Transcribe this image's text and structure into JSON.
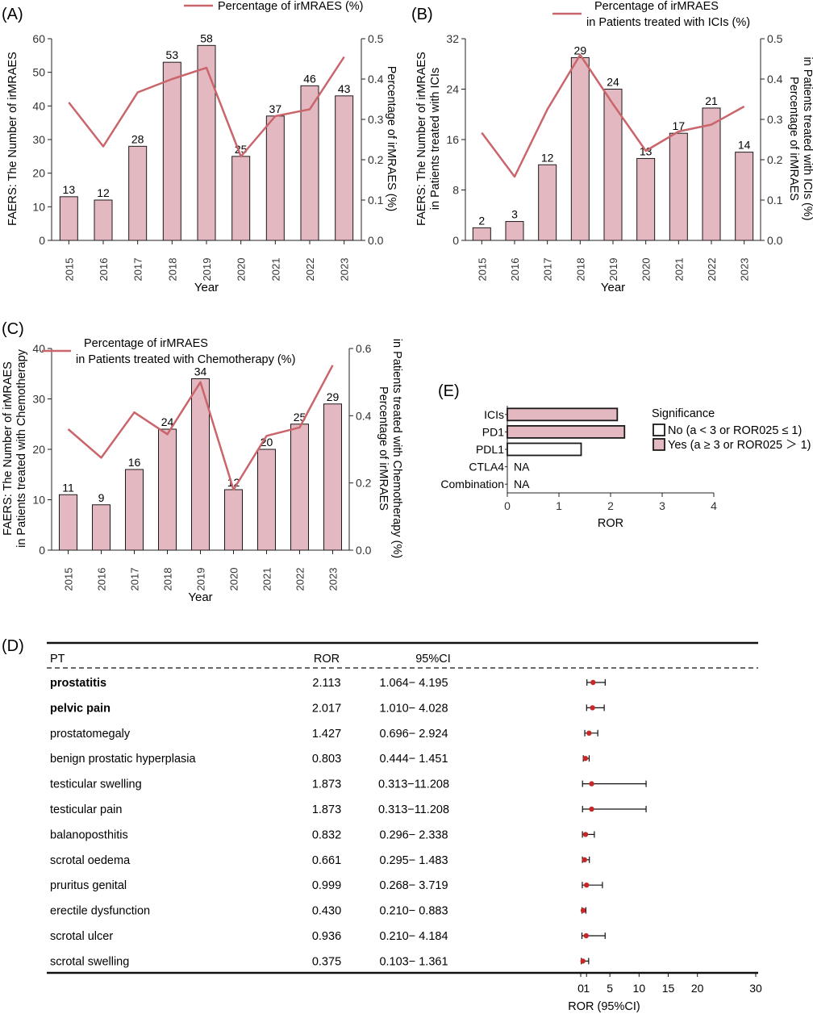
{
  "panels": {
    "A": "(A)",
    "B": "(B)",
    "C": "(C)",
    "D": "(D)",
    "E": "(E)"
  },
  "colors": {
    "bar": "#e4b8c0",
    "line": "#c9656b",
    "edge": "#1a1a1a",
    "dot": "#c62828"
  },
  "chart_data": [
    {
      "id": "A",
      "type": "bar",
      "categories": [
        "2015",
        "2016",
        "2017",
        "2018",
        "2019",
        "2020",
        "2021",
        "2022",
        "2023"
      ],
      "values": [
        13,
        12,
        28,
        53,
        58,
        25,
        37,
        46,
        43
      ],
      "ylim": [
        0,
        60
      ],
      "yticks": [
        0,
        10,
        20,
        30,
        40,
        50,
        60
      ],
      "pct": [
        0.342,
        0.233,
        0.367,
        0.4,
        0.428,
        0.208,
        0.308,
        0.325,
        0.455
      ],
      "ylim2": [
        0,
        0.5
      ],
      "yticks2": [
        "0.0",
        "0.1",
        "0.2",
        "0.3",
        "0.4",
        "0.5"
      ],
      "xlabel": "Year",
      "ylabel": [
        "FAERS: The Number of irMRAES"
      ],
      "ylabel2": [
        "Percentage of irMRAES (%)"
      ],
      "legend": [
        "Percentage of irMRAES (%)"
      ]
    },
    {
      "id": "B",
      "type": "bar",
      "categories": [
        "2015",
        "2016",
        "2017",
        "2018",
        "2019",
        "2020",
        "2021",
        "2022",
        "2023"
      ],
      "values": [
        2,
        3,
        12,
        29,
        24,
        13,
        17,
        21,
        14
      ],
      "ylim": [
        0,
        32
      ],
      "yticks": [
        0,
        8,
        16,
        24,
        32
      ],
      "pct": [
        0.267,
        0.158,
        0.325,
        0.46,
        0.338,
        0.222,
        0.27,
        0.287,
        0.332
      ],
      "ylim2": [
        0,
        0.5
      ],
      "yticks2": [
        "0.0",
        "0.1",
        "0.2",
        "0.3",
        "0.4",
        "0.5"
      ],
      "xlabel": "Year",
      "ylabel": [
        "FAERS: The Number of irMRAES",
        "in Patients treated with ICIs"
      ],
      "ylabel2": [
        "Percentage of irMRAES",
        "in Patients treated with ICIs (%)"
      ],
      "legend": [
        "Percentage of irMRAES",
        "in Patients treated with ICIs (%)"
      ]
    },
    {
      "id": "C",
      "type": "bar",
      "categories": [
        "2015",
        "2016",
        "2017",
        "2018",
        "2019",
        "2020",
        "2021",
        "2022",
        "2023"
      ],
      "values": [
        11,
        9,
        16,
        24,
        34,
        12,
        20,
        25,
        29
      ],
      "ylim": [
        0,
        40
      ],
      "yticks": [
        0,
        10,
        20,
        30,
        40
      ],
      "pct": [
        0.36,
        0.275,
        0.41,
        0.345,
        0.5,
        0.18,
        0.34,
        0.365,
        0.55
      ],
      "ylim2": [
        0,
        0.6
      ],
      "yticks2": [
        "0.0",
        "0.2",
        "0.4",
        "0.6"
      ],
      "xlabel": "Year",
      "ylabel": [
        "FAERS: The Number of irMRAES",
        "in Patients treated with Chemotherapy"
      ],
      "ylabel2": [
        "Percentage of irMRAES",
        "in Patients treated with Chemotherapy (%)"
      ],
      "legend": [
        "Percentage of irMRAES",
        "in Patients treated with Chemotherapy (%)"
      ]
    },
    {
      "id": "E",
      "type": "bar",
      "orientation": "horizontal",
      "categories": [
        "ICIs",
        "PD1",
        "PDL1",
        "CTLA4",
        "Combination"
      ],
      "values": [
        2.13,
        2.27,
        1.43,
        null,
        null
      ],
      "labels_missing": [
        "",
        "",
        "",
        "NA",
        "NA"
      ],
      "significant": [
        true,
        true,
        false,
        false,
        false
      ],
      "xlim": [
        0,
        4
      ],
      "xticks": [
        "0",
        "1",
        "2",
        "3",
        "4"
      ],
      "xlabel": "ROR",
      "legend_title": "Significance",
      "legend": [
        "No (a < 3 or ROR025 ≤ 1)",
        "Yes (a ≥ 3 or ROR025 ＞ 1)"
      ]
    },
    {
      "id": "D",
      "type": "table",
      "headers": [
        "PT",
        "ROR",
        "95%CI"
      ],
      "rows": [
        {
          "pt": "prostatitis",
          "bold": true,
          "ror": "2.113",
          "ci": "1.064− 4.195",
          "v": 2.113,
          "lo": 1.064,
          "hi": 4.195
        },
        {
          "pt": "pelvic pain",
          "bold": true,
          "ror": "2.017",
          "ci": "1.010− 4.028",
          "v": 2.017,
          "lo": 1.01,
          "hi": 4.028
        },
        {
          "pt": "prostatomegaly",
          "bold": false,
          "ror": "1.427",
          "ci": "0.696− 2.924",
          "v": 1.427,
          "lo": 0.696,
          "hi": 2.924
        },
        {
          "pt": "benign prostatic hyperplasia",
          "bold": false,
          "ror": "0.803",
          "ci": "0.444− 1.451",
          "v": 0.803,
          "lo": 0.444,
          "hi": 1.451
        },
        {
          "pt": "testicular swelling",
          "bold": false,
          "ror": "1.873",
          "ci": "0.313−11.208",
          "v": 1.873,
          "lo": 0.313,
          "hi": 11.208
        },
        {
          "pt": "testicular pain",
          "bold": false,
          "ror": "1.873",
          "ci": "0.313−11.208",
          "v": 1.873,
          "lo": 0.313,
          "hi": 11.208
        },
        {
          "pt": "balanoposthitis",
          "bold": false,
          "ror": "0.832",
          "ci": "0.296− 2.338",
          "v": 0.832,
          "lo": 0.296,
          "hi": 2.338
        },
        {
          "pt": "scrotal oedema",
          "bold": false,
          "ror": "0.661",
          "ci": "0.295− 1.483",
          "v": 0.661,
          "lo": 0.295,
          "hi": 1.483
        },
        {
          "pt": "pruritus genital",
          "bold": false,
          "ror": "0.999",
          "ci": "0.268− 3.719",
          "v": 0.999,
          "lo": 0.268,
          "hi": 3.719
        },
        {
          "pt": "erectile dysfunction",
          "bold": false,
          "ror": "0.430",
          "ci": "0.210− 0.883",
          "v": 0.43,
          "lo": 0.21,
          "hi": 0.883
        },
        {
          "pt": "scrotal ulcer",
          "bold": false,
          "ror": "0.936",
          "ci": "0.210− 4.184",
          "v": 0.936,
          "lo": 0.21,
          "hi": 4.184
        },
        {
          "pt": "scrotal swelling",
          "bold": false,
          "ror": "0.375",
          "ci": "0.103− 1.361",
          "v": 0.375,
          "lo": 0.103,
          "hi": 1.361
        }
      ],
      "xlim": [
        0,
        30
      ],
      "xticks": [
        {
          "v": 0,
          "label": "0"
        },
        {
          "v": 1,
          "label": "1"
        },
        {
          "v": 5,
          "label": "5"
        },
        {
          "v": 10,
          "label": "10"
        },
        {
          "v": 15,
          "label": "15"
        },
        {
          "v": 20,
          "label": "20"
        },
        {
          "v": 30,
          "label": "30"
        }
      ],
      "xlabel": "ROR (95%CI)"
    }
  ]
}
